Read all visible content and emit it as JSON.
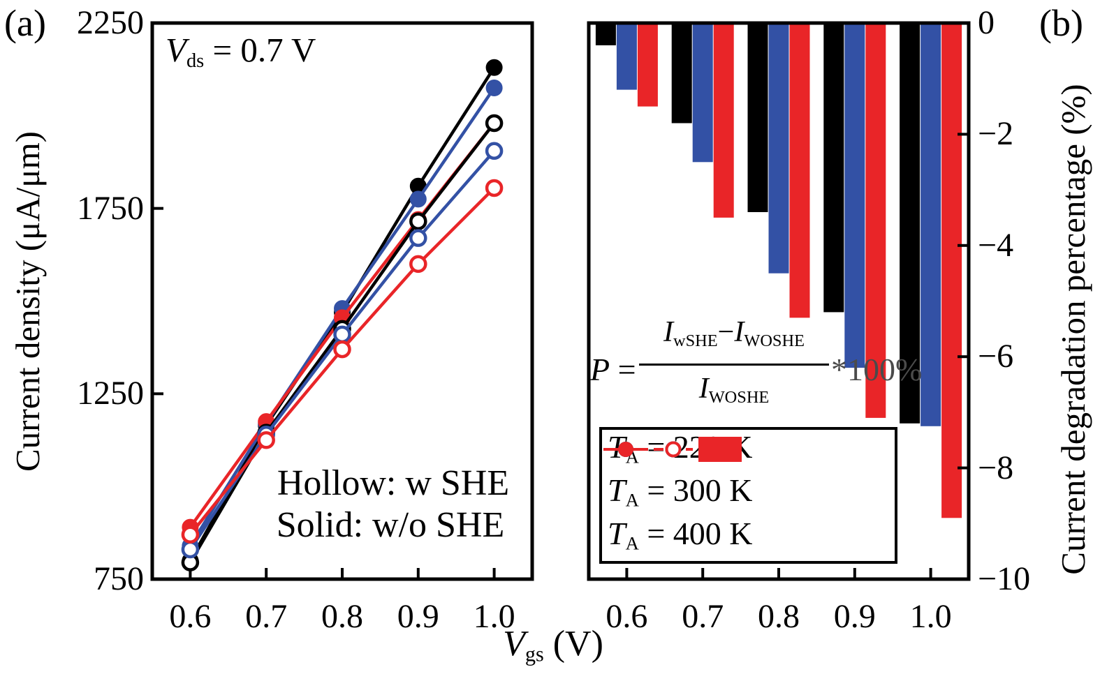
{
  "colors": {
    "t220": "#000000",
    "t300": "#3351a5",
    "t400": "#e92528",
    "frame": "#000000",
    "background": "#ffffff"
  },
  "labels": {
    "panel_a": "(a)",
    "panel_b": "(b)",
    "ylabel_a": "Current density (μA/μm)",
    "ylabel_b": "Current degradation percentage (%)",
    "xlabel_var": "V",
    "xlabel_sub": "gs",
    "xlabel_rest": " (V)",
    "vds_var": "V",
    "vds_sub": "ds",
    "vds_rest": " = 0.7 V",
    "note_line1": "Hollow: w SHE",
    "note_line2": "Solid: w/o SHE"
  },
  "formula": {
    "lhs": "P",
    "eq": " = ",
    "num_i1": "I",
    "num_sub1": "wSHE",
    "minus": "−",
    "num_i2": "I",
    "num_sub2": "WOSHE",
    "den_i": "I",
    "den_sub": "WOSHE",
    "suffix": "*100%"
  },
  "legend": {
    "rows": [
      {
        "var": "T",
        "sub": "A",
        "text": " = 220 K",
        "color_key": "t220"
      },
      {
        "var": "T",
        "sub": "A",
        "text": " = 300 K",
        "color_key": "t300"
      },
      {
        "var": "T",
        "sub": "A",
        "text": " = 400 K",
        "color_key": "t400"
      }
    ]
  },
  "chart_data": [
    {
      "type": "line",
      "panel": "a",
      "title": "",
      "annotation": "V_ds = 0.7 V",
      "xlabel": "V_gs (V)",
      "ylabel": "Current density (μA/μm)",
      "x": [
        0.6,
        0.7,
        0.8,
        0.9,
        1.0
      ],
      "xtick_labels": [
        "0.6",
        "0.7",
        "0.8",
        "0.9",
        "1.0"
      ],
      "xlim": [
        0.55,
        1.05
      ],
      "ylim": [
        750,
        2250
      ],
      "yticks": [
        2250,
        1750,
        1250,
        750
      ],
      "ytick_labels": [
        "2250",
        "1750",
        "1250",
        "750"
      ],
      "grid": false,
      "series": [
        {
          "name": "w/o SHE, TA = 220 K",
          "marker": "solid",
          "color_key": "t220",
          "values": [
            800,
            1165,
            1470,
            1810,
            2130
          ]
        },
        {
          "name": "w/o SHE, TA = 300 K",
          "marker": "solid",
          "color_key": "t300",
          "values": [
            840,
            1170,
            1480,
            1775,
            2075
          ]
        },
        {
          "name": "w/o SHE, TA = 400 K",
          "marker": "solid",
          "color_key": "t400",
          "values": [
            890,
            1175,
            1455,
            1720,
            1980
          ]
        },
        {
          "name": "w SHE, TA = 220 K",
          "marker": "hollow",
          "color_key": "t220",
          "values": [
            795,
            1145,
            1425,
            1715,
            1980
          ]
        },
        {
          "name": "w SHE, TA = 300 K",
          "marker": "hollow",
          "color_key": "t300",
          "values": [
            830,
            1140,
            1410,
            1670,
            1905
          ]
        },
        {
          "name": "w SHE, TA = 400 K",
          "marker": "hollow",
          "color_key": "t400",
          "values": [
            870,
            1125,
            1370,
            1600,
            1805
          ]
        }
      ]
    },
    {
      "type": "bar",
      "panel": "b",
      "title": "",
      "ylabel": "Current degradation percentage (%)",
      "categories": [
        "0.6",
        "0.7",
        "0.8",
        "0.9",
        "1.0"
      ],
      "x": [
        0.6,
        0.7,
        0.8,
        0.9,
        1.0
      ],
      "xlim": [
        0.55,
        1.05
      ],
      "ylim": [
        -10,
        0
      ],
      "ytick_values": [
        0,
        -2,
        -4,
        -6,
        -8,
        -10
      ],
      "ytick_labels": [
        "0",
        "−2",
        "−4",
        "−6",
        "−8",
        "−10"
      ],
      "grid": false,
      "legend_position": "lower-left-inside",
      "series": [
        {
          "name": "TA = 220 K",
          "color_key": "t220",
          "values": [
            -0.4,
            -1.8,
            -3.4,
            -5.2,
            -7.2
          ]
        },
        {
          "name": "TA = 300 K",
          "color_key": "t300",
          "values": [
            -1.2,
            -2.5,
            -4.5,
            -6.2,
            -7.25
          ]
        },
        {
          "name": "TA = 400 K",
          "color_key": "t400",
          "values": [
            -1.5,
            -3.5,
            -5.3,
            -7.1,
            -8.9
          ]
        }
      ]
    }
  ]
}
